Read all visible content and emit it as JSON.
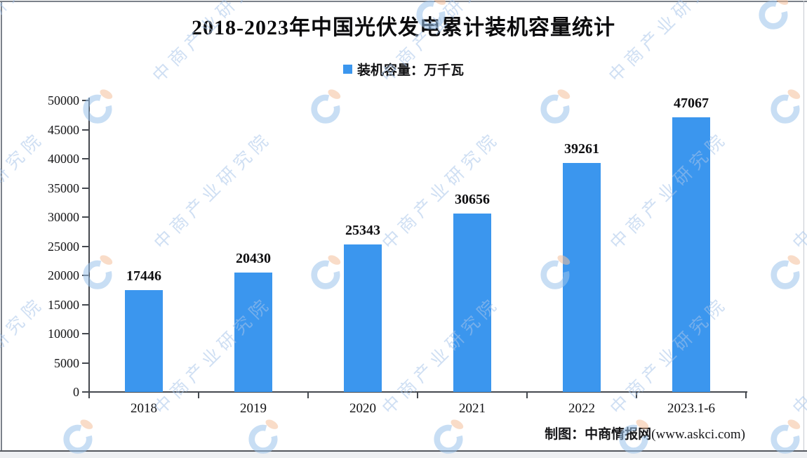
{
  "title": "2018-2023年中国光伏发电累计装机容量统计",
  "legend": {
    "label": "装机容量：万千瓦",
    "marker_color": "#3B96EE"
  },
  "chart_data": {
    "type": "bar",
    "title": "2018-2023年中国光伏发电累计装机容量统计",
    "series_name": "装机容量",
    "unit": "万千瓦",
    "categories": [
      "2018",
      "2019",
      "2020",
      "2021",
      "2022",
      "2023.1-6"
    ],
    "values": [
      17446,
      20430,
      25343,
      30656,
      39261,
      47067
    ],
    "yticks": [
      0,
      5000,
      10000,
      15000,
      20000,
      25000,
      30000,
      35000,
      40000,
      45000,
      50000
    ],
    "ylim": [
      0,
      50000
    ],
    "bar_color": "#3B96EE",
    "grid": false,
    "legend_position": "top",
    "data_labels": true
  },
  "footer": {
    "credit_prefix": "制图：中商情报网",
    "credit_url": "(www.askci.com)"
  },
  "watermark": {
    "text": "中商产业研究院",
    "text_color": "rgba(168,197,233,0.55)",
    "logo_blue": "#9cc4ec",
    "logo_orange": "#f5c09c"
  }
}
